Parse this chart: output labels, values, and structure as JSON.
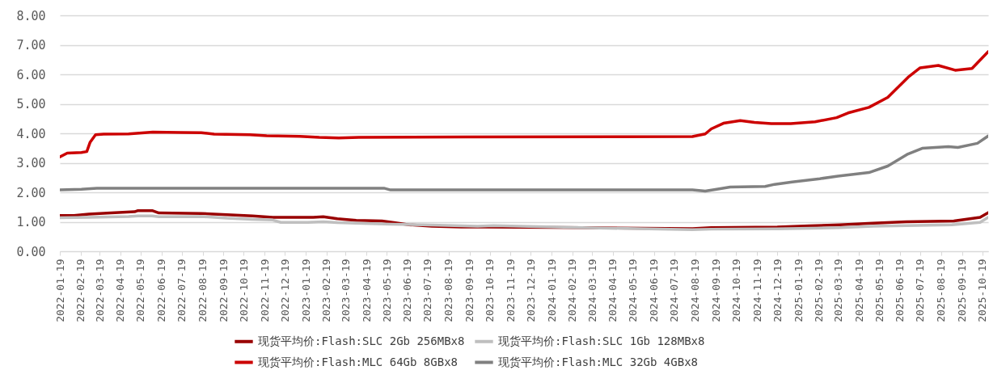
{
  "chart_data": {
    "type": "line",
    "xlim": [
      "2022-01-19",
      "2025-10-28"
    ],
    "ylim": [
      0,
      8
    ],
    "xticks": [
      "2022-01-19",
      "2022-02-19",
      "2022-03-19",
      "2022-04-19",
      "2022-05-19",
      "2022-06-19",
      "2022-07-19",
      "2022-08-19",
      "2022-09-19",
      "2022-10-19",
      "2022-11-19",
      "2022-12-19",
      "2023-01-19",
      "2023-02-19",
      "2023-03-19",
      "2023-04-19",
      "2023-05-19",
      "2023-06-19",
      "2023-07-19",
      "2023-08-19",
      "2023-09-19",
      "2023-10-19",
      "2023-11-19",
      "2023-12-19",
      "2024-01-19",
      "2024-02-19",
      "2024-03-19",
      "2024-04-19",
      "2024-05-19",
      "2024-06-19",
      "2024-07-19",
      "2024-08-19",
      "2024-09-19",
      "2024-10-19",
      "2024-11-19",
      "2024-12-19",
      "2025-01-19",
      "2025-02-19",
      "2025-03-19",
      "2025-04-19",
      "2025-05-19",
      "2025-06-19",
      "2025-07-19",
      "2025-08-19",
      "2025-09-19",
      "2025-10-19"
    ],
    "yticks": [
      {
        "value": 0,
        "label": "0.00"
      },
      {
        "value": 1,
        "label": "1.00"
      },
      {
        "value": 2,
        "label": "2.00"
      },
      {
        "value": 3,
        "label": "3.00"
      },
      {
        "value": 4,
        "label": "4.00"
      },
      {
        "value": 5,
        "label": "5.00"
      },
      {
        "value": 6,
        "label": "6.00"
      },
      {
        "value": 7,
        "label": "7.00"
      },
      {
        "value": 8,
        "label": "8.00"
      }
    ],
    "grid": "y",
    "legend": "bottom",
    "line_style": "solid",
    "marker": "none",
    "series": [
      {
        "name": "现货平均价:Flash:SLC 2Gb 256MBx8",
        "color": "#990000",
        "x": [
          "2022-01-19",
          "2022-02-09",
          "2022-03-03",
          "2022-04-05",
          "2022-05-10",
          "2022-05-15",
          "2022-06-05",
          "2022-06-15",
          "2022-08-17",
          "2022-09-24",
          "2022-11-01",
          "2022-12-01",
          "2023-01-30",
          "2023-02-14",
          "2023-03-07",
          "2023-04-04",
          "2023-05-12",
          "2023-05-30",
          "2023-06-21",
          "2023-07-25",
          "2023-09-07",
          "2023-10-12",
          "2024-03-04",
          "2024-08-15",
          "2024-09-12",
          "2024-12-19",
          "2025-02-05",
          "2025-03-22",
          "2025-05-10",
          "2025-06-28",
          "2025-09-07",
          "2025-10-16",
          "2025-10-28"
        ],
        "values": [
          1.21,
          1.21,
          1.26,
          1.3,
          1.34,
          1.38,
          1.38,
          1.3,
          1.28,
          1.24,
          1.2,
          1.15,
          1.15,
          1.17,
          1.1,
          1.05,
          1.03,
          0.97,
          0.9,
          0.85,
          0.82,
          0.82,
          0.8,
          0.77,
          0.8,
          0.82,
          0.86,
          0.9,
          0.95,
          1.0,
          1.03,
          1.15,
          1.31
        ]
      },
      {
        "name": "现货平均价:Flash:SLC 1Gb 128MBx8",
        "color": "#bfbfbf",
        "x": [
          "2022-01-19",
          "2022-03-03",
          "2022-05-01",
          "2022-05-15",
          "2022-06-05",
          "2022-06-15",
          "2022-08-17",
          "2022-09-24",
          "2022-11-01",
          "2022-12-01",
          "2022-12-13",
          "2023-01-22",
          "2023-02-14",
          "2023-03-07",
          "2023-04-04",
          "2023-05-25",
          "2023-07-12",
          "2023-08-28",
          "2023-10-01",
          "2023-10-25",
          "2024-03-04",
          "2024-08-15",
          "2024-09-12",
          "2024-12-19",
          "2025-03-22",
          "2025-05-10",
          "2025-09-04",
          "2025-10-16",
          "2025-10-28"
        ],
        "values": [
          1.14,
          1.15,
          1.18,
          1.2,
          1.2,
          1.17,
          1.18,
          1.12,
          1.08,
          1.06,
          0.98,
          0.98,
          1.0,
          0.97,
          0.95,
          0.92,
          0.9,
          0.87,
          0.85,
          0.87,
          0.8,
          0.73,
          0.75,
          0.76,
          0.8,
          0.85,
          0.9,
          0.98,
          1.15
        ]
      },
      {
        "name": "现货平均价:Flash:MLC 64Gb 8GBx8",
        "color": "#cc0000",
        "x": [
          "2022-01-19",
          "2022-01-30",
          "2022-02-20",
          "2022-02-28",
          "2022-03-05",
          "2022-03-13",
          "2022-03-25",
          "2022-05-01",
          "2022-06-06",
          "2022-07-18",
          "2022-08-17",
          "2022-09-05",
          "2022-10-28",
          "2022-11-22",
          "2023-01-10",
          "2023-02-08",
          "2023-03-09",
          "2023-04-08",
          "2023-09-13",
          "2024-08-15",
          "2024-09-03",
          "2024-09-12",
          "2024-09-30",
          "2024-10-25",
          "2024-11-15",
          "2024-12-10",
          "2025-01-08",
          "2025-02-13",
          "2025-03-17",
          "2025-04-03",
          "2025-05-04",
          "2025-06-01",
          "2025-07-01",
          "2025-07-19",
          "2025-08-15",
          "2025-09-09",
          "2025-10-04",
          "2025-10-28"
        ],
        "values": [
          3.2,
          3.33,
          3.35,
          3.38,
          3.7,
          3.95,
          3.97,
          3.98,
          4.04,
          4.03,
          4.02,
          3.97,
          3.95,
          3.92,
          3.9,
          3.86,
          3.84,
          3.86,
          3.88,
          3.89,
          3.98,
          4.15,
          4.34,
          4.43,
          4.37,
          4.33,
          4.33,
          4.39,
          4.53,
          4.69,
          4.88,
          5.22,
          5.9,
          6.22,
          6.3,
          6.14,
          6.2,
          6.77
        ]
      },
      {
        "name": "现货平均价:Flash:MLC 32Gb 4GBx8",
        "color": "#808080",
        "x": [
          "2022-01-19",
          "2022-02-20",
          "2022-03-15",
          "2023-05-15",
          "2023-05-25",
          "2024-08-15",
          "2024-09-03",
          "2024-09-20",
          "2024-10-10",
          "2024-12-01",
          "2024-12-15",
          "2025-01-10",
          "2025-02-20",
          "2025-03-19",
          "2025-05-04",
          "2025-06-01",
          "2025-07-01",
          "2025-07-22",
          "2025-08-30",
          "2025-09-13",
          "2025-10-12",
          "2025-10-28"
        ],
        "values": [
          2.08,
          2.1,
          2.14,
          2.14,
          2.08,
          2.08,
          2.04,
          2.1,
          2.18,
          2.2,
          2.27,
          2.35,
          2.46,
          2.55,
          2.67,
          2.89,
          3.3,
          3.49,
          3.55,
          3.52,
          3.66,
          3.91
        ]
      }
    ]
  }
}
